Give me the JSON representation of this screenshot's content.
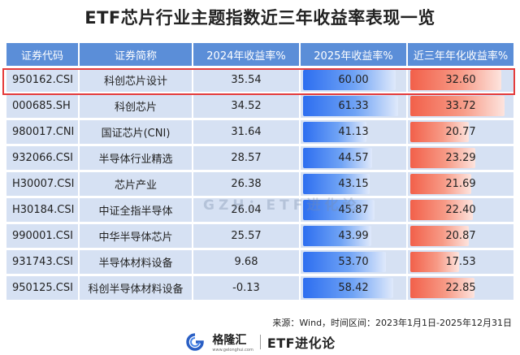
{
  "title": "ETF芯片行业主题指数近三年收益率表现一览",
  "headers": {
    "code": "证券代码",
    "name": "证券简称",
    "y2024": "2024年收益率%",
    "y2025": "2025年收益率%",
    "annualized": "近三年年化收益率%"
  },
  "rows": [
    {
      "code": "950162.CSI",
      "name": "科创芯片设计",
      "y2024": "35.54",
      "y2025": "60.00",
      "annualized": "32.60",
      "y2025_num": 60.0,
      "ann_num": 32.6
    },
    {
      "code": "000685.SH",
      "name": "科创芯片",
      "y2024": "34.52",
      "y2025": "61.33",
      "annualized": "33.72",
      "y2025_num": 61.33,
      "ann_num": 33.72
    },
    {
      "code": "980017.CNI",
      "name": "国证芯片(CNI)",
      "y2024": "31.64",
      "y2025": "41.13",
      "annualized": "20.77",
      "y2025_num": 41.13,
      "ann_num": 20.77
    },
    {
      "code": "932066.CSI",
      "name": "半导体行业精选",
      "y2024": "28.57",
      "y2025": "44.57",
      "annualized": "23.29",
      "y2025_num": 44.57,
      "ann_num": 23.29
    },
    {
      "code": "H30007.CSI",
      "name": "芯片产业",
      "y2024": "26.38",
      "y2025": "43.15",
      "annualized": "21.69",
      "y2025_num": 43.15,
      "ann_num": 21.69
    },
    {
      "code": "H30184.CSI",
      "name": "中证全指半导体",
      "y2024": "26.04",
      "y2025": "45.87",
      "annualized": "22.40",
      "y2025_num": 45.87,
      "ann_num": 22.4
    },
    {
      "code": "990001.CSI",
      "name": "中华半导体芯片",
      "y2024": "25.57",
      "y2025": "43.99",
      "annualized": "20.87",
      "y2025_num": 43.99,
      "ann_num": 20.87
    },
    {
      "code": "931743.CSI",
      "name": "半导体材料设备",
      "y2024": "9.68",
      "y2025": "53.70",
      "annualized": "17.53",
      "y2025_num": 53.7,
      "ann_num": 17.53
    },
    {
      "code": "950125.CSI",
      "name": "科创半导体材料设备",
      "y2024": "-0.13",
      "y2025": "58.42",
      "annualized": "22.85",
      "y2025_num": 58.42,
      "ann_num": 22.85
    }
  ],
  "watermark": "GZH：ETF进化论",
  "source": "来源：Wind，时间区间：2023年1月1日-2025年12月31日",
  "footer": {
    "brand1": "格隆汇",
    "brand1_sub": "www.gelonghui.com",
    "brand2": "ETF进化论"
  },
  "colors": {
    "header_bg": "#5b8ed8",
    "row_bg": "#d6e1f3",
    "bar_blue": "#2d6ef0",
    "bar_red": "#f2604a",
    "highlight": "#e43b3b"
  }
}
